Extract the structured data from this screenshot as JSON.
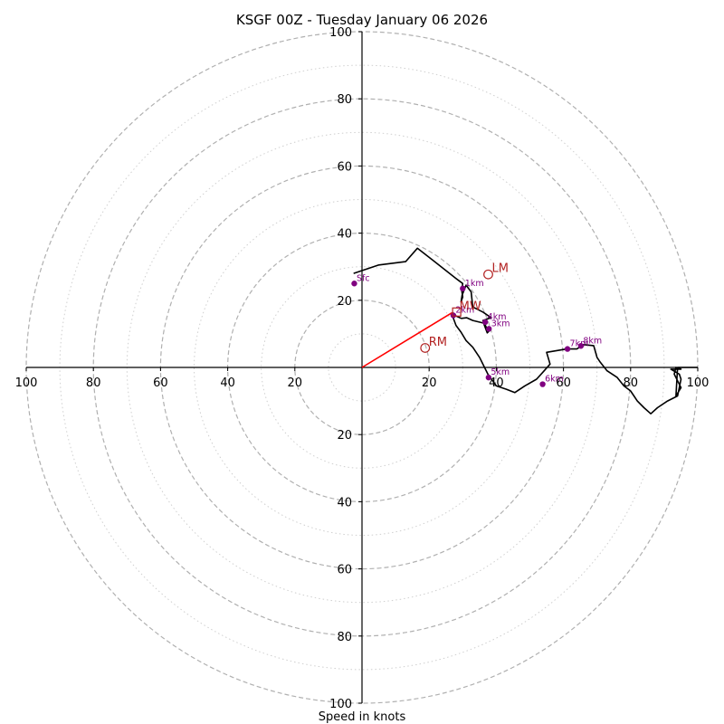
{
  "chart_data": {
    "type": "hodograph",
    "title": "KSGF 00Z - Tuesday January 06 2026",
    "xlabel": "Speed in knots",
    "axis_range": [
      -100,
      100
    ],
    "rings_dashed": [
      20,
      40,
      60,
      80,
      100
    ],
    "rings_dotted": [
      10,
      30,
      50,
      70,
      90
    ],
    "tick_values": [
      20,
      40,
      60,
      80,
      100
    ],
    "hodograph_line": [
      [
        -2.5,
        28
      ],
      [
        5,
        30.5
      ],
      [
        13,
        31.5
      ],
      [
        16.5,
        35.5
      ],
      [
        21,
        32
      ],
      [
        28,
        26.5
      ],
      [
        30,
        25
      ],
      [
        29.7,
        23
      ],
      [
        30,
        21
      ],
      [
        29.5,
        19.5
      ],
      [
        29.8,
        21.5
      ],
      [
        31,
        24.5
      ],
      [
        32.5,
        22.5
      ],
      [
        33,
        18
      ],
      [
        36,
        16.5
      ],
      [
        38.5,
        14.8
      ],
      [
        37.5,
        14.5
      ],
      [
        36,
        14
      ],
      [
        37,
        12
      ],
      [
        38,
        11
      ],
      [
        37.3,
        10.3
      ],
      [
        36.2,
        13.2
      ],
      [
        33,
        14
      ],
      [
        31.2,
        14.8
      ],
      [
        29.6,
        14.6
      ],
      [
        28,
        15.3
      ],
      [
        27,
        16.3
      ],
      [
        27,
        15.2
      ],
      [
        28,
        12.5
      ],
      [
        29.5,
        10.5
      ],
      [
        31,
        8
      ],
      [
        33,
        6
      ],
      [
        35,
        3
      ],
      [
        36.5,
        0
      ],
      [
        37.5,
        -2
      ],
      [
        38.2,
        -3
      ],
      [
        40,
        -5.5
      ],
      [
        43,
        -6.5
      ],
      [
        45.5,
        -7.5
      ],
      [
        48.5,
        -5.5
      ],
      [
        52,
        -3.5
      ],
      [
        54,
        -1.3
      ],
      [
        56,
        1
      ],
      [
        55,
        4.5
      ],
      [
        61,
        5.5
      ],
      [
        64,
        5.5
      ],
      [
        66,
        6.8
      ],
      [
        69,
        6.5
      ],
      [
        70,
        3
      ],
      [
        71,
        1.5
      ],
      [
        73,
        -1
      ],
      [
        76,
        -3
      ],
      [
        78,
        -5.5
      ],
      [
        80,
        -7
      ],
      [
        81,
        -8.5
      ],
      [
        82,
        -10
      ],
      [
        84,
        -12
      ],
      [
        86,
        -13.8
      ],
      [
        88,
        -12
      ],
      [
        91,
        -10
      ],
      [
        94,
        -8.5
      ],
      [
        95,
        -3.5
      ],
      [
        94.5,
        -2
      ],
      [
        92,
        -0.5
      ],
      [
        95,
        -0.5
      ],
      [
        93.5,
        0
      ],
      [
        93,
        -2
      ],
      [
        95,
        -6
      ],
      [
        93.5,
        -8.5
      ],
      [
        94,
        0
      ],
      [
        100,
        0
      ]
    ],
    "height_markers": [
      {
        "label": "Sfc",
        "u": -2.3,
        "v": 25
      },
      {
        "label": "1km",
        "u": 30,
        "v": 23.5
      },
      {
        "label": "2km",
        "u": 27.2,
        "v": 15.5
      },
      {
        "label": "3km",
        "u": 37.8,
        "v": 11.5
      },
      {
        "label": "4km",
        "u": 36.7,
        "v": 13.5
      },
      {
        "label": "5km",
        "u": 37.7,
        "v": -3
      },
      {
        "label": "6km",
        "u": 53.8,
        "v": -5
      },
      {
        "label": "7km",
        "u": 61.2,
        "v": 5.5
      },
      {
        "label": "8km",
        "u": 65.2,
        "v": 6.4
      }
    ],
    "storm_motions": [
      {
        "label": "RM",
        "u": 18.8,
        "v": 5.8
      },
      {
        "label": "LM",
        "u": 37.6,
        "v": 27.7
      }
    ],
    "mean_wind": {
      "label": "MW",
      "u": 28.2,
      "v": 16.5
    },
    "shear_vector": {
      "u": 26.8,
      "v": 16.3
    },
    "colors": {
      "hodograph": "#000000",
      "markers": "#800080",
      "storm_motion": "#b22222",
      "shear_vector": "#ff0000",
      "rings": "#b0b0b0",
      "axes": "#000000"
    }
  }
}
